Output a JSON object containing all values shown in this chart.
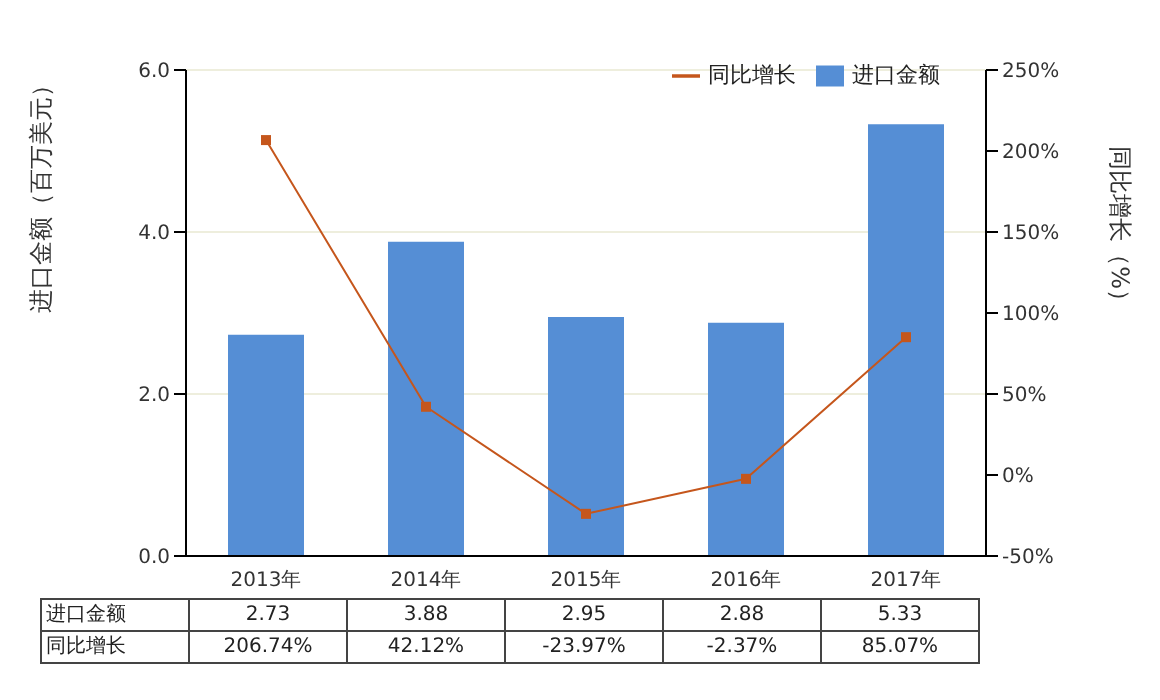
{
  "chart_data": {
    "type": "bar",
    "categories": [
      "2013年",
      "2014年",
      "2015年",
      "2016年",
      "2017年"
    ],
    "ylabel": "进口金额（百万美元）",
    "y2label": "同比增长（%）",
    "ylim": [
      0,
      6
    ],
    "yticks": [
      {
        "value": 0,
        "label": "0.0"
      },
      {
        "value": 2,
        "label": "2.0"
      },
      {
        "value": 4,
        "label": "4.0"
      },
      {
        "value": 6,
        "label": "6.0"
      }
    ],
    "y2lim": [
      -50,
      250
    ],
    "y2ticks": [
      {
        "value": -50,
        "label": "-50%"
      },
      {
        "value": 0,
        "label": "0%"
      },
      {
        "value": 50,
        "label": "50%"
      },
      {
        "value": 100,
        "label": "100%"
      },
      {
        "value": 150,
        "label": "150%"
      },
      {
        "value": 200,
        "label": "200%"
      },
      {
        "value": 250,
        "label": "250%"
      }
    ],
    "series": [
      {
        "name": "进口金额",
        "color": "#558ed5",
        "values": [
          2.73,
          3.88,
          2.95,
          2.88,
          5.33
        ],
        "value_labels": [
          "2.73",
          "3.88",
          "2.95",
          "2.88",
          "5.33"
        ]
      },
      {
        "name": "同比增长",
        "type": "line",
        "axis": "y2",
        "color": "#c5561c",
        "marker": "square",
        "values": [
          206.74,
          42.12,
          -23.97,
          -2.37,
          85.07
        ],
        "value_labels": [
          "206.74%",
          "42.12%",
          "-23.97%",
          "-2.37%",
          "85.07%"
        ]
      }
    ],
    "grid": "y",
    "legend": "top right"
  }
}
